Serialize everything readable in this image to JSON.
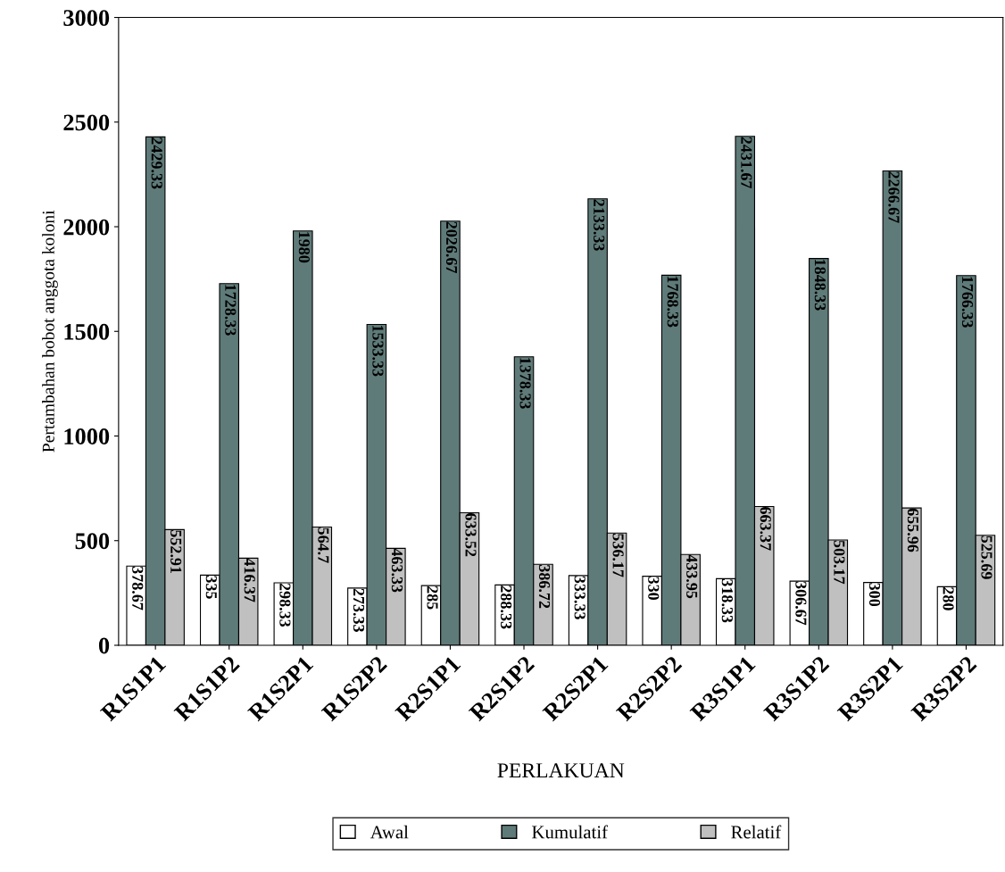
{
  "chart_data": {
    "type": "bar",
    "xlabel": "PERLAKUAN",
    "ylabel": "Pertambahan bobot anggota koloni",
    "categories": [
      "R1S1P1",
      "R1S1P2",
      "R1S2P1",
      "R1S2P2",
      "R2S1P1",
      "R2S1P2",
      "R2S2P1",
      "R2S2P2",
      "R3S1P1",
      "R3S1P2",
      "R3S2P1",
      "R3S2P2"
    ],
    "series": [
      {
        "name": "Awal",
        "color": "#ffffff",
        "values": [
          378.67,
          335,
          298.33,
          273.33,
          285,
          288.33,
          333.33,
          330,
          318.33,
          306.67,
          300,
          280
        ]
      },
      {
        "name": "Kumulatif",
        "color": "#5f7b79",
        "values": [
          2429.33,
          1728.33,
          1980,
          1533.33,
          2026.67,
          1378.33,
          2133.33,
          1768.33,
          2431.67,
          1848.33,
          2266.67,
          1766.33
        ]
      },
      {
        "name": "Relatif",
        "color": "#c0c0c0",
        "values": [
          552.91,
          416.37,
          564.7,
          463.33,
          633.52,
          386.72,
          536.17,
          433.95,
          663.37,
          503.17,
          655.96,
          525.69
        ]
      }
    ],
    "ylim": [
      0,
      3000
    ],
    "yticks": [
      0,
      500,
      1000,
      1500,
      2000,
      2500,
      3000
    ],
    "data_labels": true,
    "grid": false,
    "legend": "bottom"
  }
}
